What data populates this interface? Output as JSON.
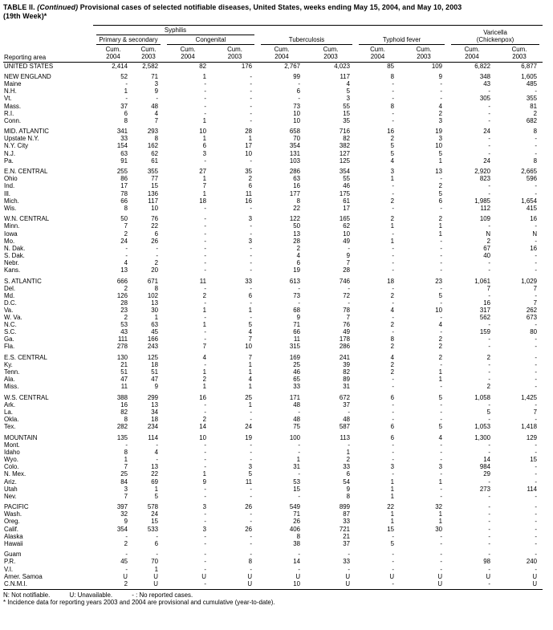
{
  "title": {
    "table_no": "TABLE II.",
    "continued": "(Continued)",
    "line1_rest": "Provisional cases of selected notifiable diseases, United States, weeks ending May 15, 2004, and May 10, 2003",
    "line2": "(19th Week)*"
  },
  "header": {
    "reporting_area": "Reporting area",
    "syphilis": "Syphilis",
    "primary_secondary": "Primary & secondary",
    "congenital": "Congenital",
    "tuberculosis": "Tuberculosis",
    "typhoid": "Typhoid fever",
    "varicella_line1": "Varicella",
    "varicella_line2": "(Chickenpox)",
    "cum_label": "Cum.",
    "col_years": [
      "2004",
      "2003",
      "2004",
      "2003",
      "2004",
      "2003",
      "2004",
      "2003",
      "2004",
      "2003"
    ]
  },
  "groups": [
    {
      "rows": [
        {
          "area": "UNITED STATES",
          "values": [
            "2,414",
            "2,582",
            "82",
            "176",
            "2,767",
            "4,023",
            "85",
            "109",
            "6,822",
            "6,877"
          ]
        }
      ]
    },
    {
      "rows": [
        {
          "area": "NEW ENGLAND",
          "values": [
            "52",
            "71",
            "1",
            "-",
            "99",
            "117",
            "8",
            "9",
            "348",
            "1,605"
          ]
        },
        {
          "area": "Maine",
          "values": [
            "-",
            "3",
            "-",
            "-",
            "-",
            "4",
            "-",
            "-",
            "43",
            "485"
          ]
        },
        {
          "area": "N.H.",
          "values": [
            "1",
            "9",
            "-",
            "-",
            "6",
            "5",
            "-",
            "-",
            "-",
            "-"
          ]
        },
        {
          "area": "Vt.",
          "values": [
            "-",
            "-",
            "-",
            "-",
            "-",
            "3",
            "-",
            "-",
            "305",
            "355"
          ]
        },
        {
          "area": "Mass.",
          "values": [
            "37",
            "48",
            "-",
            "-",
            "73",
            "55",
            "8",
            "4",
            "-",
            "81"
          ]
        },
        {
          "area": "R.I.",
          "values": [
            "6",
            "4",
            "-",
            "-",
            "10",
            "15",
            "-",
            "2",
            "-",
            "2"
          ]
        },
        {
          "area": "Conn.",
          "values": [
            "8",
            "7",
            "1",
            "-",
            "10",
            "35",
            "-",
            "3",
            "-",
            "682"
          ]
        }
      ]
    },
    {
      "rows": [
        {
          "area": "MID. ATLANTIC",
          "values": [
            "341",
            "293",
            "10",
            "28",
            "658",
            "716",
            "16",
            "19",
            "24",
            "8"
          ]
        },
        {
          "area": "Upstate N.Y.",
          "values": [
            "33",
            "8",
            "1",
            "1",
            "70",
            "82",
            "2",
            "3",
            "-",
            "-"
          ]
        },
        {
          "area": "N.Y. City",
          "values": [
            "154",
            "162",
            "6",
            "17",
            "354",
            "382",
            "5",
            "10",
            "-",
            "-"
          ]
        },
        {
          "area": "N.J.",
          "values": [
            "63",
            "62",
            "3",
            "10",
            "131",
            "127",
            "5",
            "5",
            "-",
            "-"
          ]
        },
        {
          "area": "Pa.",
          "values": [
            "91",
            "61",
            "-",
            "-",
            "103",
            "125",
            "4",
            "1",
            "24",
            "8"
          ]
        }
      ]
    },
    {
      "rows": [
        {
          "area": "E.N. CENTRAL",
          "values": [
            "255",
            "355",
            "27",
            "35",
            "286",
            "354",
            "3",
            "13",
            "2,920",
            "2,665"
          ]
        },
        {
          "area": "Ohio",
          "values": [
            "86",
            "77",
            "1",
            "2",
            "63",
            "55",
            "1",
            "-",
            "823",
            "596"
          ]
        },
        {
          "area": "Ind.",
          "values": [
            "17",
            "15",
            "7",
            "6",
            "16",
            "46",
            "-",
            "2",
            "-",
            "-"
          ]
        },
        {
          "area": "Ill.",
          "values": [
            "78",
            "136",
            "1",
            "11",
            "177",
            "175",
            "-",
            "5",
            "-",
            "-"
          ]
        },
        {
          "area": "Mich.",
          "values": [
            "66",
            "117",
            "18",
            "16",
            "8",
            "61",
            "2",
            "6",
            "1,985",
            "1,654"
          ]
        },
        {
          "area": "Wis.",
          "values": [
            "8",
            "10",
            "-",
            "-",
            "22",
            "17",
            "-",
            "-",
            "112",
            "415"
          ]
        }
      ]
    },
    {
      "rows": [
        {
          "area": "W.N. CENTRAL",
          "values": [
            "50",
            "76",
            "-",
            "3",
            "122",
            "165",
            "2",
            "2",
            "109",
            "16"
          ]
        },
        {
          "area": "Minn.",
          "values": [
            "7",
            "22",
            "-",
            "-",
            "50",
            "62",
            "1",
            "1",
            "-",
            "-"
          ]
        },
        {
          "area": "Iowa",
          "values": [
            "2",
            "6",
            "-",
            "-",
            "13",
            "10",
            "-",
            "1",
            "N",
            "N"
          ]
        },
        {
          "area": "Mo.",
          "values": [
            "24",
            "26",
            "-",
            "3",
            "28",
            "49",
            "1",
            "-",
            "2",
            "-"
          ]
        },
        {
          "area": "N. Dak.",
          "values": [
            "-",
            "-",
            "-",
            "-",
            "2",
            "-",
            "-",
            "-",
            "67",
            "16"
          ]
        },
        {
          "area": "S. Dak.",
          "values": [
            "-",
            "-",
            "-",
            "-",
            "4",
            "9",
            "-",
            "-",
            "40",
            "-"
          ]
        },
        {
          "area": "Nebr.",
          "values": [
            "4",
            "2",
            "-",
            "-",
            "6",
            "7",
            "-",
            "-",
            "-",
            "-"
          ]
        },
        {
          "area": "Kans.",
          "values": [
            "13",
            "20",
            "-",
            "-",
            "19",
            "28",
            "-",
            "-",
            "-",
            "-"
          ]
        }
      ]
    },
    {
      "rows": [
        {
          "area": "S. ATLANTIC",
          "values": [
            "666",
            "671",
            "11",
            "33",
            "613",
            "746",
            "18",
            "23",
            "1,061",
            "1,029"
          ]
        },
        {
          "area": "Del.",
          "values": [
            "2",
            "8",
            "-",
            "-",
            "-",
            "-",
            "-",
            "-",
            "7",
            "7"
          ]
        },
        {
          "area": "Md.",
          "values": [
            "126",
            "102",
            "2",
            "6",
            "73",
            "72",
            "2",
            "5",
            "-",
            "-"
          ]
        },
        {
          "area": "D.C.",
          "values": [
            "28",
            "13",
            "-",
            "-",
            "-",
            "-",
            "-",
            "-",
            "16",
            "7"
          ]
        },
        {
          "area": "Va.",
          "values": [
            "23",
            "30",
            "1",
            "1",
            "68",
            "78",
            "4",
            "10",
            "317",
            "262"
          ]
        },
        {
          "area": "W. Va.",
          "values": [
            "2",
            "1",
            "-",
            "-",
            "9",
            "7",
            "-",
            "-",
            "562",
            "673"
          ]
        },
        {
          "area": "N.C.",
          "values": [
            "53",
            "63",
            "1",
            "5",
            "71",
            "76",
            "2",
            "4",
            "-",
            "-"
          ]
        },
        {
          "area": "S.C.",
          "values": [
            "43",
            "45",
            "-",
            "4",
            "66",
            "49",
            "-",
            "-",
            "159",
            "80"
          ]
        },
        {
          "area": "Ga.",
          "values": [
            "111",
            "166",
            "-",
            "7",
            "11",
            "178",
            "8",
            "2",
            "-",
            "-"
          ]
        },
        {
          "area": "Fla.",
          "values": [
            "278",
            "243",
            "7",
            "10",
            "315",
            "286",
            "2",
            "2",
            "-",
            "-"
          ]
        }
      ]
    },
    {
      "rows": [
        {
          "area": "E.S. CENTRAL",
          "values": [
            "130",
            "125",
            "4",
            "7",
            "169",
            "241",
            "4",
            "2",
            "2",
            "-"
          ]
        },
        {
          "area": "Ky.",
          "values": [
            "21",
            "18",
            "-",
            "1",
            "25",
            "39",
            "2",
            "-",
            "-",
            "-"
          ]
        },
        {
          "area": "Tenn.",
          "values": [
            "51",
            "51",
            "1",
            "1",
            "46",
            "82",
            "2",
            "1",
            "-",
            "-"
          ]
        },
        {
          "area": "Ala.",
          "values": [
            "47",
            "47",
            "2",
            "4",
            "65",
            "89",
            "-",
            "1",
            "-",
            "-"
          ]
        },
        {
          "area": "Miss.",
          "values": [
            "11",
            "9",
            "1",
            "1",
            "33",
            "31",
            "-",
            "-",
            "2",
            "-"
          ]
        }
      ]
    },
    {
      "rows": [
        {
          "area": "W.S. CENTRAL",
          "values": [
            "388",
            "299",
            "16",
            "25",
            "171",
            "672",
            "6",
            "5",
            "1,058",
            "1,425"
          ]
        },
        {
          "area": "Ark.",
          "values": [
            "16",
            "13",
            "-",
            "1",
            "48",
            "37",
            "-",
            "-",
            "-",
            "-"
          ]
        },
        {
          "area": "La.",
          "values": [
            "82",
            "34",
            "-",
            "-",
            "-",
            "-",
            "-",
            "-",
            "5",
            "7"
          ]
        },
        {
          "area": "Okla.",
          "values": [
            "8",
            "18",
            "2",
            "-",
            "48",
            "48",
            "-",
            "-",
            "-",
            "-"
          ]
        },
        {
          "area": "Tex.",
          "values": [
            "282",
            "234",
            "14",
            "24",
            "75",
            "587",
            "6",
            "5",
            "1,053",
            "1,418"
          ]
        }
      ]
    },
    {
      "rows": [
        {
          "area": "MOUNTAIN",
          "values": [
            "135",
            "114",
            "10",
            "19",
            "100",
            "113",
            "6",
            "4",
            "1,300",
            "129"
          ]
        },
        {
          "area": "Mont.",
          "values": [
            "-",
            "-",
            "-",
            "-",
            "-",
            "-",
            "-",
            "-",
            "-",
            "-"
          ]
        },
        {
          "area": "Idaho",
          "values": [
            "8",
            "4",
            "-",
            "-",
            "-",
            "1",
            "-",
            "-",
            "-",
            "-"
          ]
        },
        {
          "area": "Wyo.",
          "values": [
            "1",
            "-",
            "-",
            "-",
            "1",
            "2",
            "-",
            "-",
            "14",
            "15"
          ]
        },
        {
          "area": "Colo.",
          "values": [
            "7",
            "13",
            "-",
            "3",
            "31",
            "33",
            "3",
            "3",
            "984",
            "-"
          ]
        },
        {
          "area": "N. Mex.",
          "values": [
            "25",
            "22",
            "1",
            "5",
            "-",
            "6",
            "-",
            "-",
            "29",
            "-"
          ]
        },
        {
          "area": "Ariz.",
          "values": [
            "84",
            "69",
            "9",
            "11",
            "53",
            "54",
            "1",
            "1",
            "-",
            "-"
          ]
        },
        {
          "area": "Utah",
          "values": [
            "3",
            "1",
            "-",
            "-",
            "15",
            "9",
            "1",
            "-",
            "273",
            "114"
          ]
        },
        {
          "area": "Nev.",
          "values": [
            "7",
            "5",
            "-",
            "-",
            "-",
            "8",
            "1",
            "-",
            "-",
            "-"
          ]
        }
      ]
    },
    {
      "rows": [
        {
          "area": "PACIFIC",
          "values": [
            "397",
            "578",
            "3",
            "26",
            "549",
            "899",
            "22",
            "32",
            "-",
            "-"
          ]
        },
        {
          "area": "Wash.",
          "values": [
            "32",
            "24",
            "-",
            "-",
            "71",
            "87",
            "1",
            "1",
            "-",
            "-"
          ]
        },
        {
          "area": "Oreg.",
          "values": [
            "9",
            "15",
            "-",
            "-",
            "26",
            "33",
            "1",
            "1",
            "-",
            "-"
          ]
        },
        {
          "area": "Calif.",
          "values": [
            "354",
            "533",
            "3",
            "26",
            "406",
            "721",
            "15",
            "30",
            "-",
            "-"
          ]
        },
        {
          "area": "Alaska",
          "values": [
            "-",
            "-",
            "-",
            "-",
            "8",
            "21",
            "-",
            "-",
            "-",
            "-"
          ]
        },
        {
          "area": "Hawaii",
          "values": [
            "2",
            "6",
            "-",
            "-",
            "38",
            "37",
            "5",
            "-",
            "-",
            "-"
          ]
        }
      ]
    },
    {
      "rows": [
        {
          "area": "Guam",
          "values": [
            "-",
            "-",
            "-",
            "-",
            "-",
            "-",
            "-",
            "-",
            "-",
            "-"
          ]
        },
        {
          "area": "P.R.",
          "values": [
            "45",
            "70",
            "-",
            "8",
            "14",
            "33",
            "-",
            "-",
            "98",
            "240"
          ]
        },
        {
          "area": "V.I.",
          "values": [
            "-",
            "1",
            "-",
            "-",
            "-",
            "-",
            "-",
            "-",
            "-",
            "-"
          ]
        },
        {
          "area": "Amer. Samoa",
          "values": [
            "U",
            "U",
            "U",
            "U",
            "U",
            "U",
            "U",
            "U",
            "U",
            "U"
          ]
        },
        {
          "area": "C.N.M.I.",
          "values": [
            "2",
            "U",
            "-",
            "U",
            "10",
            "U",
            "-",
            "U",
            "-",
            "U"
          ]
        }
      ]
    }
  ],
  "footnotes": {
    "not_notifiable": "N: Not notifiable.",
    "unavailable": "U: Unavailable.",
    "no_cases": "- : No reported cases.",
    "provisional": "* Incidence data for reporting years 2003 and 2004 are provisional and cumulative (year-to-date)."
  }
}
